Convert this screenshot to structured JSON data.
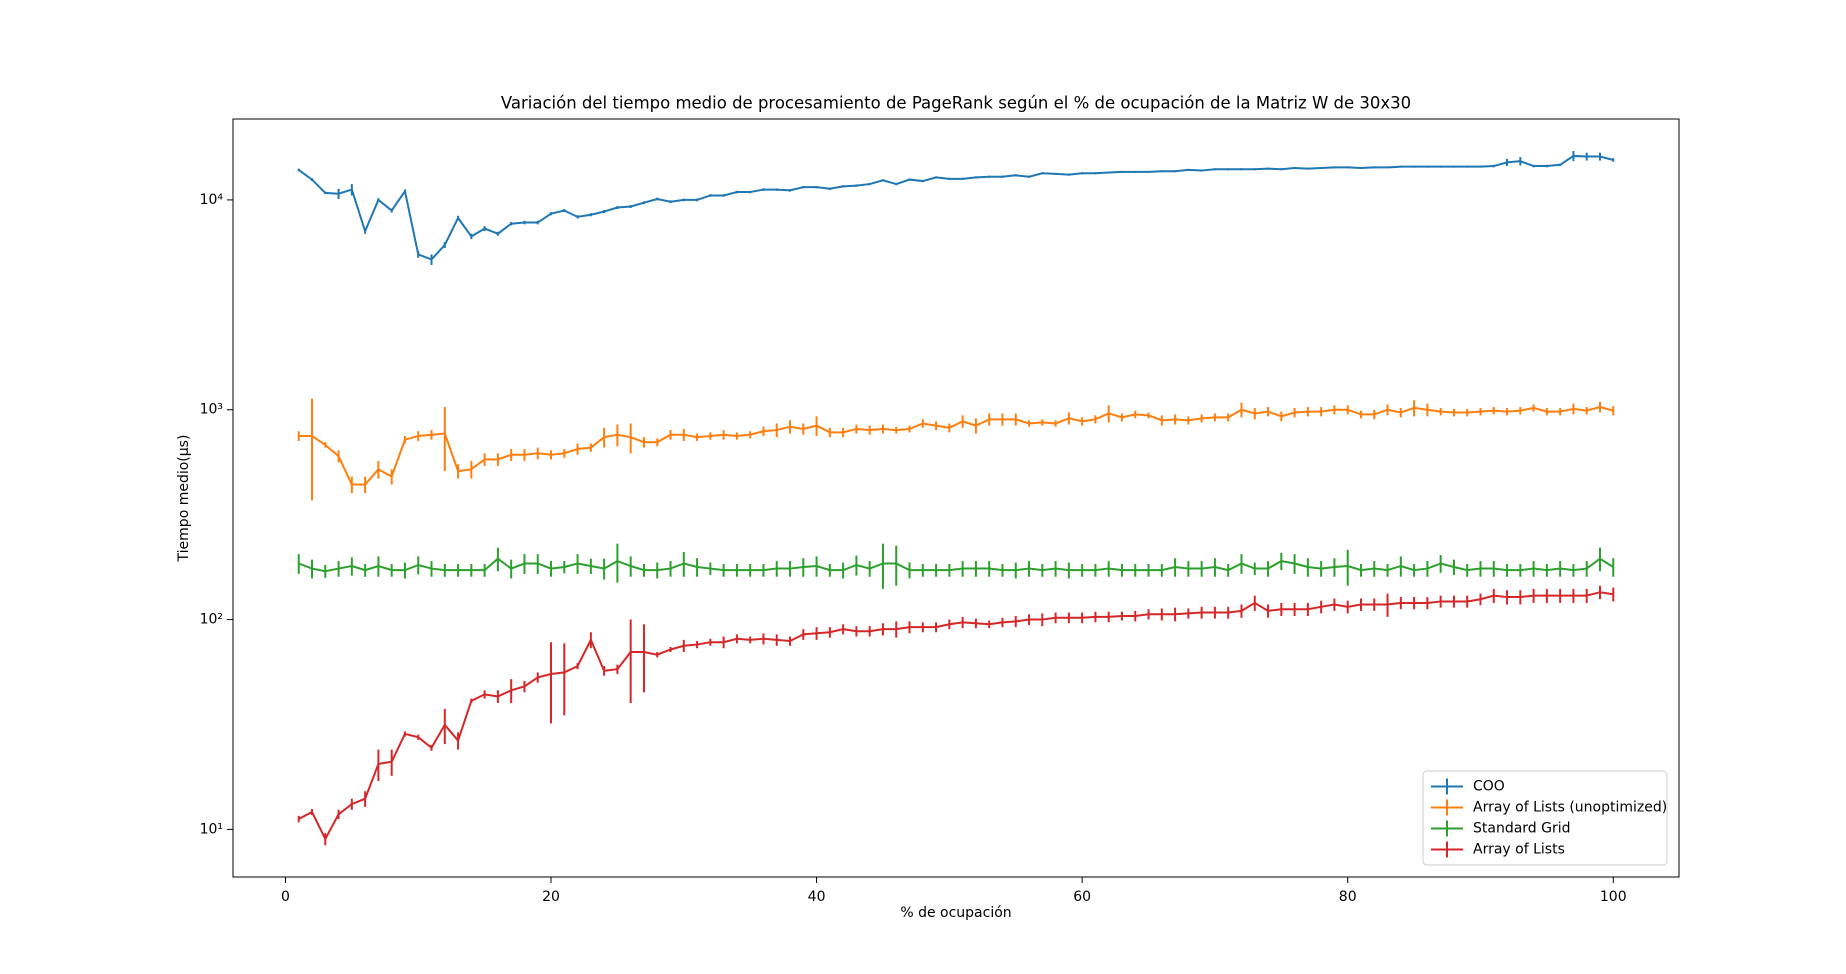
{
  "chart_data": {
    "type": "errorbar-line",
    "title": "Variación del tiempo medio de procesamiento de PageRank según el % de ocupación de la Matriz W de 30x30",
    "xlabel": "% de ocupación",
    "ylabel": "Tiempo medio(µs)",
    "yscale": "log",
    "legend": "lower right",
    "grid": false,
    "xlim": [
      -3.95,
      104.95
    ],
    "xticks": [
      0,
      20,
      40,
      60,
      80,
      100
    ],
    "ylim": [
      5.93,
      24300
    ],
    "yticks": [
      {
        "value": 10,
        "label": "10¹"
      },
      {
        "value": 100,
        "label": "10²"
      },
      {
        "value": 1000,
        "label": "10³"
      },
      {
        "value": 10000,
        "label": "10⁴"
      }
    ],
    "x": [
      1,
      2,
      3,
      4,
      5,
      6,
      7,
      8,
      9,
      10,
      11,
      12,
      13,
      14,
      15,
      16,
      17,
      18,
      19,
      20,
      21,
      22,
      23,
      24,
      25,
      26,
      27,
      28,
      29,
      30,
      31,
      32,
      33,
      34,
      35,
      36,
      37,
      38,
      39,
      40,
      41,
      42,
      43,
      44,
      45,
      46,
      47,
      48,
      49,
      50,
      51,
      52,
      53,
      54,
      55,
      56,
      57,
      58,
      59,
      60,
      61,
      62,
      63,
      64,
      65,
      66,
      67,
      68,
      69,
      70,
      71,
      72,
      73,
      74,
      75,
      76,
      77,
      78,
      79,
      80,
      81,
      82,
      83,
      84,
      85,
      86,
      87,
      88,
      89,
      90,
      91,
      92,
      93,
      94,
      95,
      96,
      97,
      98,
      99,
      100
    ],
    "series": [
      {
        "name": "COO",
        "color": "#1f77b4",
        "values": [
          13900,
          12500,
          10800,
          10700,
          11200,
          7100,
          10000,
          8900,
          11000,
          5500,
          5200,
          6100,
          8200,
          6700,
          7300,
          6900,
          7700,
          7800,
          7800,
          8600,
          8900,
          8300,
          8500,
          8800,
          9200,
          9300,
          9700,
          10100,
          9800,
          10000,
          10000,
          10500,
          10500,
          10900,
          10900,
          11200,
          11200,
          11100,
          11500,
          11500,
          11300,
          11600,
          11700,
          11900,
          12400,
          11900,
          12500,
          12300,
          12800,
          12600,
          12600,
          12800,
          12900,
          12900,
          13100,
          12900,
          13400,
          13300,
          13200,
          13400,
          13400,
          13500,
          13600,
          13600,
          13600,
          13700,
          13700,
          13900,
          13800,
          14000,
          14000,
          14000,
          14000,
          14100,
          14000,
          14200,
          14100,
          14200,
          14300,
          14300,
          14200,
          14300,
          14300,
          14400,
          14400,
          14400,
          14400,
          14400,
          14400,
          14400,
          14500,
          15100,
          15300,
          14500,
          14500,
          14700,
          16200,
          16100,
          16100,
          15500
        ],
        "errors": [
          200,
          200,
          150,
          600,
          700,
          200,
          200,
          200,
          200,
          200,
          300,
          200,
          200,
          200,
          200,
          150,
          150,
          150,
          150,
          150,
          150,
          150,
          150,
          150,
          150,
          150,
          150,
          150,
          150,
          150,
          150,
          150,
          150,
          150,
          150,
          150,
          150,
          150,
          150,
          150,
          150,
          150,
          150,
          150,
          150,
          150,
          150,
          150,
          150,
          150,
          150,
          150,
          150,
          150,
          150,
          150,
          150,
          150,
          150,
          150,
          150,
          150,
          150,
          150,
          150,
          150,
          150,
          150,
          150,
          150,
          150,
          150,
          150,
          150,
          150,
          150,
          150,
          150,
          150,
          150,
          150,
          150,
          150,
          150,
          150,
          150,
          150,
          150,
          150,
          150,
          200,
          600,
          700,
          200,
          200,
          200,
          900,
          700,
          700,
          300
        ]
      },
      {
        "name": "Array of Lists (unoptimized)",
        "color": "#ff7f0e",
        "values": [
          750,
          750,
          680,
          600,
          440,
          440,
          520,
          480,
          720,
          750,
          760,
          770,
          510,
          520,
          580,
          580,
          610,
          610,
          620,
          610,
          620,
          650,
          660,
          740,
          760,
          740,
          700,
          700,
          760,
          760,
          740,
          750,
          760,
          750,
          760,
          790,
          800,
          830,
          810,
          840,
          780,
          780,
          810,
          800,
          810,
          800,
          810,
          860,
          840,
          820,
          880,
          840,
          900,
          900,
          900,
          860,
          870,
          860,
          910,
          880,
          900,
          960,
          920,
          950,
          940,
          890,
          900,
          890,
          910,
          920,
          920,
          1000,
          960,
          980,
          930,
          970,
          980,
          980,
          1000,
          1000,
          950,
          950,
          1000,
          970,
          1020,
          1000,
          980,
          970,
          970,
          980,
          990,
          980,
          990,
          1020,
          980,
          980,
          1010,
          990,
          1030,
          990
        ],
        "errors": [
          40,
          380,
          20,
          40,
          40,
          40,
          50,
          40,
          30,
          40,
          40,
          260,
          40,
          50,
          40,
          40,
          40,
          40,
          40,
          30,
          30,
          40,
          30,
          80,
          90,
          120,
          40,
          30,
          40,
          50,
          30,
          30,
          40,
          30,
          30,
          40,
          60,
          60,
          50,
          90,
          40,
          40,
          40,
          40,
          40,
          30,
          30,
          40,
          40,
          40,
          60,
          70,
          60,
          60,
          60,
          30,
          30,
          30,
          60,
          40,
          40,
          90,
          40,
          40,
          30,
          50,
          50,
          40,
          40,
          40,
          40,
          80,
          60,
          50,
          50,
          50,
          50,
          50,
          50,
          50,
          40,
          50,
          60,
          50,
          90,
          70,
          40,
          40,
          40,
          40,
          40,
          40,
          40,
          40,
          40,
          40,
          60,
          40,
          60,
          50
        ]
      },
      {
        "name": "Standard Grid",
        "color": "#2ca02c",
        "values": [
          185,
          175,
          170,
          175,
          180,
          172,
          180,
          172,
          172,
          182,
          175,
          172,
          172,
          172,
          172,
          195,
          175,
          185,
          185,
          175,
          178,
          185,
          180,
          175,
          190,
          180,
          172,
          172,
          175,
          185,
          178,
          175,
          172,
          172,
          172,
          172,
          175,
          175,
          178,
          180,
          172,
          172,
          182,
          175,
          185,
          185,
          172,
          172,
          172,
          172,
          175,
          175,
          175,
          172,
          172,
          175,
          172,
          175,
          172,
          172,
          172,
          175,
          172,
          172,
          172,
          172,
          178,
          175,
          175,
          178,
          172,
          185,
          175,
          175,
          190,
          185,
          178,
          175,
          178,
          180,
          172,
          175,
          172,
          180,
          172,
          175,
          185,
          178,
          172,
          175,
          175,
          172,
          172,
          175,
          172,
          175,
          172,
          175,
          195,
          178
        ],
        "errors": [
          20,
          18,
          12,
          15,
          18,
          12,
          20,
          12,
          15,
          18,
          15,
          12,
          12,
          12,
          12,
          25,
          18,
          20,
          20,
          15,
          12,
          20,
          15,
          20,
          40,
          20,
          12,
          15,
          15,
          25,
          18,
          12,
          12,
          12,
          12,
          12,
          15,
          15,
          18,
          20,
          12,
          15,
          20,
          15,
          45,
          40,
          15,
          12,
          12,
          12,
          15,
          15,
          15,
          12,
          15,
          15,
          12,
          15,
          15,
          12,
          12,
          15,
          12,
          12,
          12,
          12,
          18,
          15,
          15,
          18,
          12,
          20,
          12,
          15,
          18,
          20,
          18,
          15,
          18,
          35,
          12,
          15,
          12,
          20,
          12,
          15,
          18,
          15,
          12,
          15,
          15,
          12,
          12,
          15,
          12,
          15,
          12,
          15,
          25,
          18
        ]
      },
      {
        "name": "Array of Lists",
        "color": "#d62728",
        "values": [
          11.2,
          12.1,
          9,
          11.8,
          13.2,
          14,
          20.5,
          21,
          28.5,
          27.5,
          24.5,
          31.5,
          26.5,
          41,
          44,
          43,
          46,
          48,
          53,
          55,
          56,
          60,
          80,
          57,
          58,
          70,
          70,
          68,
          72,
          75,
          76,
          78,
          78,
          81,
          80,
          81,
          80,
          79,
          85,
          86,
          87,
          90,
          88,
          88,
          90,
          90,
          92,
          92,
          92,
          95,
          97,
          96,
          95,
          97,
          98,
          100,
          100,
          102,
          102,
          102,
          103,
          103,
          104,
          104,
          106,
          106,
          106,
          107,
          108,
          108,
          108,
          110,
          120,
          110,
          112,
          112,
          112,
          115,
          118,
          115,
          118,
          118,
          118,
          120,
          120,
          120,
          122,
          122,
          122,
          125,
          130,
          128,
          128,
          130,
          130,
          130,
          130,
          130,
          135,
          132
        ],
        "errors": [
          0.4,
          0.4,
          0.6,
          0.6,
          0.8,
          1.2,
          3.5,
          3,
          0.8,
          0.8,
          0.8,
          6,
          2.5,
          1,
          2,
          3,
          6,
          3,
          3,
          23,
          21,
          2,
          7,
          3,
          3,
          30,
          25,
          2,
          2,
          5,
          3,
          3,
          5,
          4,
          3,
          5,
          5,
          4,
          5,
          6,
          5,
          5,
          5,
          5,
          6,
          8,
          6,
          5,
          5,
          5,
          6,
          5,
          4,
          5,
          6,
          6,
          7,
          6,
          6,
          6,
          6,
          6,
          5,
          6,
          6,
          7,
          8,
          6,
          7,
          7,
          7,
          8,
          10,
          8,
          8,
          8,
          8,
          8,
          8,
          8,
          8,
          8,
          15,
          8,
          8,
          8,
          8,
          8,
          8,
          8,
          10,
          10,
          10,
          10,
          10,
          10,
          10,
          10,
          10,
          10
        ]
      }
    ]
  }
}
